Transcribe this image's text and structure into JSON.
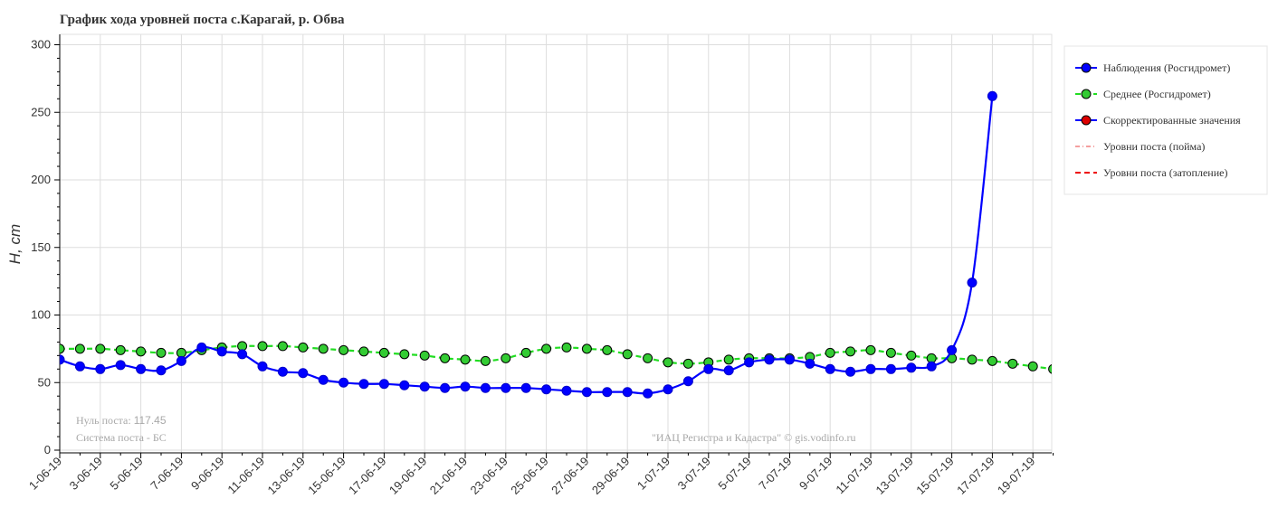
{
  "chart_data": {
    "type": "line",
    "title": "График хода уровней поста с.Карагай, р. Обва",
    "ylabel": "H, cm",
    "ylim": [
      0,
      300
    ],
    "yticks": [
      0,
      50,
      100,
      150,
      200,
      250,
      300
    ],
    "grid": true,
    "legend_position": "right",
    "x": [
      "1-06-19",
      "2-06-19",
      "3-06-19",
      "4-06-19",
      "5-06-19",
      "6-06-19",
      "7-06-19",
      "8-06-19",
      "9-06-19",
      "10-06-19",
      "11-06-19",
      "12-06-19",
      "13-06-19",
      "14-06-19",
      "15-06-19",
      "16-06-19",
      "17-06-19",
      "18-06-19",
      "19-06-19",
      "20-06-19",
      "21-06-19",
      "22-06-19",
      "23-06-19",
      "24-06-19",
      "25-06-19",
      "26-06-19",
      "27-06-19",
      "28-06-19",
      "29-06-19",
      "30-06-19",
      "1-07-19",
      "2-07-19",
      "3-07-19",
      "4-07-19",
      "5-07-19",
      "6-07-19",
      "7-07-19",
      "8-07-19",
      "9-07-19",
      "10-07-19",
      "11-07-19",
      "12-07-19",
      "13-07-19",
      "14-07-19",
      "15-07-19",
      "16-07-19",
      "17-07-19",
      "18-07-19",
      "19-07-19",
      "20-07-19"
    ],
    "xtick_labels": [
      "1-06-19",
      "3-06-19",
      "5-06-19",
      "7-06-19",
      "9-06-19",
      "11-06-19",
      "13-06-19",
      "15-06-19",
      "17-06-19",
      "19-06-19",
      "21-06-19",
      "23-06-19",
      "25-06-19",
      "27-06-19",
      "29-06-19",
      "1-07-19",
      "3-07-19",
      "5-07-19",
      "7-07-19",
      "9-07-19",
      "11-07-19",
      "13-07-19",
      "15-07-19",
      "17-07-19",
      "19-07-19"
    ],
    "series": [
      {
        "name": "Наблюдения (Росгидромет)",
        "color": "#0000ff",
        "marker_fill": "#0000ff",
        "values": [
          67,
          62,
          60,
          63,
          60,
          59,
          66,
          76,
          73,
          71,
          62,
          58,
          57,
          52,
          50,
          49,
          49,
          48,
          47,
          46,
          47,
          46,
          46,
          46,
          45,
          44,
          43,
          43,
          43,
          42,
          45,
          51,
          60,
          59,
          65,
          67,
          67,
          64,
          60,
          58,
          60,
          60,
          61,
          62,
          74,
          124,
          262,
          null,
          null,
          null
        ]
      },
      {
        "name": "Среднее (Росгидромет)",
        "color": "#22dd22",
        "marker_fill": "#33cc33",
        "values": [
          75,
          75,
          75,
          74,
          73,
          72,
          72,
          74,
          76,
          77,
          77,
          77,
          76,
          75,
          74,
          73,
          72,
          71,
          70,
          68,
          67,
          66,
          68,
          72,
          75,
          76,
          75,
          74,
          71,
          68,
          65,
          64,
          65,
          67,
          68,
          68,
          68,
          69,
          72,
          73,
          74,
          72,
          70,
          68,
          68,
          67,
          66,
          64,
          62,
          60
        ]
      }
    ],
    "legend": [
      {
        "label": "Наблюдения (Росгидромет)",
        "color": "#0000ff",
        "marker": "#0000ff",
        "style": "solid"
      },
      {
        "label": "Среднее (Росгидромет)",
        "color": "#22dd22",
        "marker": "#33cc33",
        "style": "dashed"
      },
      {
        "label": "Скорректированные значения",
        "color": "#0000ff",
        "marker": "#dd0000",
        "style": "solid"
      },
      {
        "label": "Уровни поста (пойма)",
        "color": "#ee6666",
        "marker": null,
        "style": "dashdot"
      },
      {
        "label": "Уровни поста (затопление)",
        "color": "#ee0000",
        "marker": null,
        "style": "dashed"
      }
    ],
    "annotations": {
      "zero_label": "Нуль поста: ",
      "zero_value": "117.45",
      "system": "Система поста - БС",
      "credit": "\"ИАЦ Регистра и Кадастра\" © gis.vodinfo.ru"
    }
  }
}
